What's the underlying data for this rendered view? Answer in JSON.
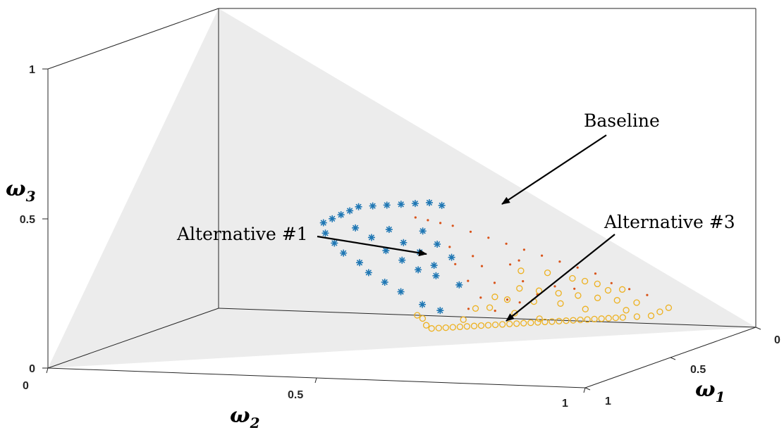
{
  "chart_data": {
    "type": "scatter",
    "dimensions": 3,
    "title": "",
    "axes": {
      "x": {
        "label": "ω",
        "sub": "1",
        "range": [
          0,
          1
        ],
        "ticks": [
          "0",
          "0.5",
          "1"
        ]
      },
      "y": {
        "label": "ω",
        "sub": "2",
        "range": [
          0,
          1
        ],
        "ticks": [
          "0",
          "0.5",
          "1"
        ]
      },
      "z": {
        "label": "ω",
        "sub": "3",
        "range": [
          0,
          1
        ],
        "ticks": [
          "0",
          "0.5",
          "1"
        ]
      }
    },
    "grid": false,
    "simplex_plane": {
      "description_color": "#ececec"
    },
    "series": [
      {
        "key": "baseline",
        "marker": "asterisk",
        "color": "#1f77b4",
        "points": [
          [
            0.46,
            0.14,
            0.4
          ],
          [
            0.44,
            0.15,
            0.41
          ],
          [
            0.42,
            0.17,
            0.41
          ],
          [
            0.4,
            0.19,
            0.41
          ],
          [
            0.38,
            0.21,
            0.41
          ],
          [
            0.36,
            0.23,
            0.41
          ],
          [
            0.34,
            0.25,
            0.41
          ],
          [
            0.33,
            0.27,
            0.4
          ],
          [
            0.32,
            0.29,
            0.39
          ],
          [
            0.31,
            0.31,
            0.38
          ],
          [
            0.3,
            0.33,
            0.37
          ],
          [
            0.31,
            0.35,
            0.34
          ],
          [
            0.33,
            0.36,
            0.31
          ],
          [
            0.35,
            0.37,
            0.28
          ],
          [
            0.38,
            0.37,
            0.25
          ],
          [
            0.4,
            0.38,
            0.22
          ],
          [
            0.43,
            0.38,
            0.19
          ],
          [
            0.46,
            0.38,
            0.16
          ],
          [
            0.5,
            0.38,
            0.12
          ],
          [
            0.53,
            0.37,
            0.1
          ],
          [
            0.35,
            0.3,
            0.35
          ],
          [
            0.38,
            0.3,
            0.32
          ],
          [
            0.41,
            0.31,
            0.28
          ],
          [
            0.44,
            0.31,
            0.25
          ],
          [
            0.47,
            0.31,
            0.22
          ],
          [
            0.4,
            0.26,
            0.34
          ],
          [
            0.43,
            0.27,
            0.3
          ],
          [
            0.46,
            0.27,
            0.27
          ],
          [
            0.49,
            0.28,
            0.23
          ],
          [
            0.45,
            0.22,
            0.33
          ],
          [
            0.48,
            0.23,
            0.29
          ],
          [
            0.51,
            0.24,
            0.25
          ],
          [
            0.5,
            0.3,
            0.2
          ],
          [
            0.54,
            0.29,
            0.17
          ]
        ]
      },
      {
        "key": "alternative_1",
        "marker": "dot",
        "color": "#d95319",
        "points": [
          [
            0.82,
            0.07,
            0.11
          ],
          [
            0.79,
            0.08,
            0.13
          ],
          [
            0.76,
            0.09,
            0.15
          ],
          [
            0.73,
            0.09,
            0.18
          ],
          [
            0.7,
            0.1,
            0.2
          ],
          [
            0.67,
            0.11,
            0.22
          ],
          [
            0.64,
            0.12,
            0.24
          ],
          [
            0.61,
            0.13,
            0.26
          ],
          [
            0.58,
            0.14,
            0.28
          ],
          [
            0.55,
            0.15,
            0.3
          ],
          [
            0.52,
            0.16,
            0.32
          ],
          [
            0.49,
            0.17,
            0.34
          ],
          [
            0.47,
            0.18,
            0.35
          ],
          [
            0.45,
            0.19,
            0.36
          ],
          [
            0.43,
            0.2,
            0.37
          ],
          [
            0.6,
            0.18,
            0.22
          ],
          [
            0.63,
            0.2,
            0.17
          ],
          [
            0.66,
            0.21,
            0.13
          ],
          [
            0.56,
            0.22,
            0.22
          ],
          [
            0.59,
            0.24,
            0.17
          ],
          [
            0.62,
            0.26,
            0.12
          ],
          [
            0.52,
            0.25,
            0.23
          ],
          [
            0.55,
            0.27,
            0.18
          ],
          [
            0.58,
            0.29,
            0.13
          ],
          [
            0.64,
            0.25,
            0.11
          ],
          [
            0.68,
            0.17,
            0.15
          ],
          [
            0.71,
            0.15,
            0.14
          ],
          [
            0.54,
            0.21,
            0.25
          ],
          [
            0.5,
            0.22,
            0.28
          ],
          [
            0.61,
            0.16,
            0.23
          ],
          [
            0.57,
            0.33,
            0.1
          ],
          [
            0.61,
            0.3,
            0.09
          ]
        ]
      },
      {
        "key": "alternative_3",
        "marker": "circle",
        "color": "#edb120",
        "points": [
          [
            0.86,
            0.07,
            0.07
          ],
          [
            0.85,
            0.09,
            0.06
          ],
          [
            0.84,
            0.11,
            0.05
          ],
          [
            0.82,
            0.13,
            0.05
          ],
          [
            0.8,
            0.15,
            0.05
          ],
          [
            0.78,
            0.17,
            0.05
          ],
          [
            0.76,
            0.19,
            0.05
          ],
          [
            0.74,
            0.21,
            0.05
          ],
          [
            0.72,
            0.23,
            0.05
          ],
          [
            0.7,
            0.25,
            0.05
          ],
          [
            0.68,
            0.27,
            0.05
          ],
          [
            0.66,
            0.29,
            0.05
          ],
          [
            0.64,
            0.31,
            0.05
          ],
          [
            0.62,
            0.33,
            0.05
          ],
          [
            0.6,
            0.35,
            0.05
          ],
          [
            0.58,
            0.37,
            0.05
          ],
          [
            0.56,
            0.39,
            0.05
          ],
          [
            0.55,
            0.4,
            0.05
          ],
          [
            0.57,
            0.38,
            0.05
          ],
          [
            0.59,
            0.36,
            0.05
          ],
          [
            0.61,
            0.34,
            0.05
          ],
          [
            0.63,
            0.32,
            0.05
          ],
          [
            0.65,
            0.3,
            0.05
          ],
          [
            0.67,
            0.28,
            0.05
          ],
          [
            0.69,
            0.26,
            0.05
          ],
          [
            0.71,
            0.24,
            0.05
          ],
          [
            0.73,
            0.22,
            0.05
          ],
          [
            0.75,
            0.2,
            0.05
          ],
          [
            0.77,
            0.18,
            0.05
          ],
          [
            0.79,
            0.16,
            0.05
          ],
          [
            0.54,
            0.41,
            0.05
          ],
          [
            0.53,
            0.42,
            0.05
          ],
          [
            0.52,
            0.42,
            0.06
          ],
          [
            0.51,
            0.41,
            0.08
          ],
          [
            0.5,
            0.41,
            0.09
          ],
          [
            0.81,
            0.1,
            0.09
          ],
          [
            0.78,
            0.12,
            0.1
          ],
          [
            0.75,
            0.14,
            0.11
          ],
          [
            0.72,
            0.16,
            0.12
          ],
          [
            0.69,
            0.18,
            0.13
          ],
          [
            0.66,
            0.2,
            0.14
          ],
          [
            0.63,
            0.22,
            0.15
          ],
          [
            0.78,
            0.09,
            0.13
          ],
          [
            0.74,
            0.11,
            0.15
          ],
          [
            0.7,
            0.13,
            0.17
          ],
          [
            0.66,
            0.15,
            0.19
          ],
          [
            0.74,
            0.18,
            0.08
          ],
          [
            0.7,
            0.2,
            0.1
          ],
          [
            0.66,
            0.23,
            0.11
          ],
          [
            0.62,
            0.26,
            0.12
          ],
          [
            0.68,
            0.26,
            0.06
          ],
          [
            0.64,
            0.28,
            0.08
          ],
          [
            0.6,
            0.3,
            0.1
          ],
          [
            0.72,
            0.12,
            0.16
          ],
          [
            0.6,
            0.27,
            0.13
          ],
          [
            0.58,
            0.32,
            0.1
          ],
          [
            0.62,
            0.18,
            0.2
          ],
          [
            0.76,
            0.11,
            0.13
          ],
          [
            0.8,
            0.13,
            0.07
          ],
          [
            0.57,
            0.36,
            0.07
          ]
        ]
      }
    ],
    "annotations": [
      {
        "text": "Baseline",
        "target_series": "baseline"
      },
      {
        "text": "Alternative #1",
        "target_series": "alternative_1"
      },
      {
        "text": "Alternative #3",
        "target_series": "alternative_3"
      }
    ]
  }
}
